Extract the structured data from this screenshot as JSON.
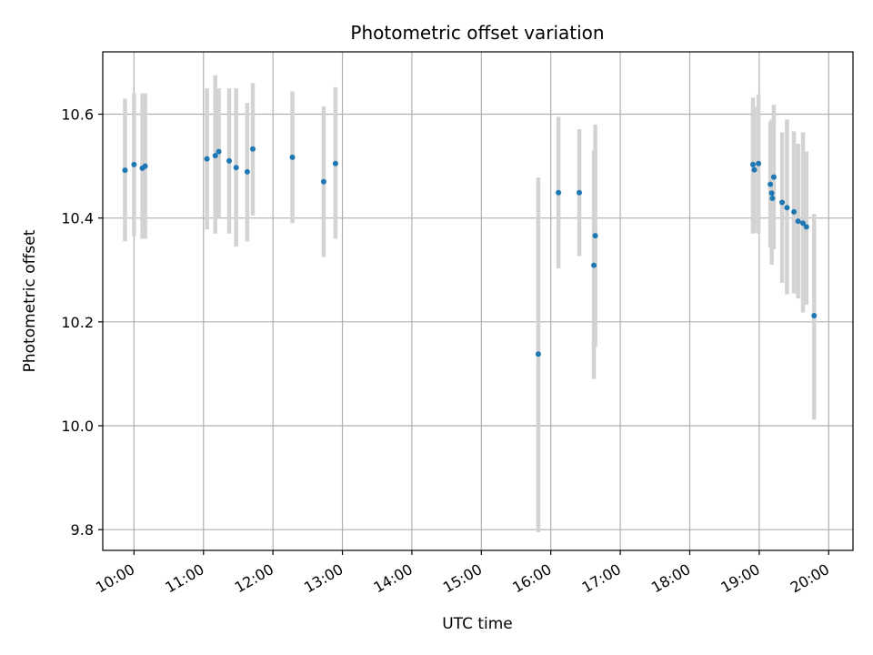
{
  "chart_data": {
    "type": "scatter",
    "title": "Photometric offset variation",
    "xlabel": "UTC time",
    "ylabel": "Photometric offset",
    "x_unit": "hour_of_day_utc",
    "xlim": [
      9.55,
      20.35
    ],
    "ylim": [
      9.76,
      10.72
    ],
    "grid": true,
    "x_ticks": [
      {
        "value": 10,
        "label": "10:00"
      },
      {
        "value": 11,
        "label": "11:00"
      },
      {
        "value": 12,
        "label": "12:00"
      },
      {
        "value": 13,
        "label": "13:00"
      },
      {
        "value": 14,
        "label": "14:00"
      },
      {
        "value": 15,
        "label": "15:00"
      },
      {
        "value": 16,
        "label": "16:00"
      },
      {
        "value": 17,
        "label": "17:00"
      },
      {
        "value": 18,
        "label": "18:00"
      },
      {
        "value": 19,
        "label": "19:00"
      },
      {
        "value": 20,
        "label": "20:00"
      }
    ],
    "y_ticks": [
      {
        "value": 9.8,
        "label": "9.8"
      },
      {
        "value": 10.0,
        "label": "10.0"
      },
      {
        "value": 10.2,
        "label": "10.2"
      },
      {
        "value": 10.4,
        "label": "10.4"
      },
      {
        "value": 10.6,
        "label": "10.6"
      }
    ],
    "point_color": "#1f77b4",
    "errorbar_color": "#d3d3d3",
    "points": [
      {
        "x": 9.87,
        "y": 10.492,
        "lo": 10.355,
        "hi": 10.63
      },
      {
        "x": 10.0,
        "y": 10.503,
        "lo": 10.365,
        "hi": 10.64
      },
      {
        "x": 10.12,
        "y": 10.496,
        "lo": 10.36,
        "hi": 10.64
      },
      {
        "x": 10.16,
        "y": 10.5,
        "lo": 10.36,
        "hi": 10.64
      },
      {
        "x": 11.05,
        "y": 10.514,
        "lo": 10.378,
        "hi": 10.65
      },
      {
        "x": 11.17,
        "y": 10.52,
        "lo": 10.37,
        "hi": 10.675
      },
      {
        "x": 11.22,
        "y": 10.528,
        "lo": 10.4,
        "hi": 10.65
      },
      {
        "x": 11.37,
        "y": 10.51,
        "lo": 10.37,
        "hi": 10.65
      },
      {
        "x": 11.47,
        "y": 10.497,
        "lo": 10.345,
        "hi": 10.65
      },
      {
        "x": 11.63,
        "y": 10.489,
        "lo": 10.355,
        "hi": 10.622
      },
      {
        "x": 11.71,
        "y": 10.533,
        "lo": 10.405,
        "hi": 10.66
      },
      {
        "x": 12.28,
        "y": 10.517,
        "lo": 10.39,
        "hi": 10.644
      },
      {
        "x": 12.73,
        "y": 10.47,
        "lo": 10.325,
        "hi": 10.615
      },
      {
        "x": 12.9,
        "y": 10.505,
        "lo": 10.36,
        "hi": 10.652
      },
      {
        "x": 15.82,
        "y": 10.138,
        "lo": 9.795,
        "hi": 10.478
      },
      {
        "x": 16.11,
        "y": 10.449,
        "lo": 10.303,
        "hi": 10.595
      },
      {
        "x": 16.41,
        "y": 10.449,
        "lo": 10.327,
        "hi": 10.571
      },
      {
        "x": 16.62,
        "y": 10.309,
        "lo": 10.09,
        "hi": 10.53
      },
      {
        "x": 16.64,
        "y": 10.366,
        "lo": 10.152,
        "hi": 10.58
      },
      {
        "x": 18.91,
        "y": 10.503,
        "lo": 10.37,
        "hi": 10.632
      },
      {
        "x": 18.93,
        "y": 10.493,
        "lo": 10.372,
        "hi": 10.614
      },
      {
        "x": 18.99,
        "y": 10.505,
        "lo": 10.37,
        "hi": 10.638
      },
      {
        "x": 19.16,
        "y": 10.465,
        "lo": 10.343,
        "hi": 10.586
      },
      {
        "x": 19.18,
        "y": 10.448,
        "lo": 10.31,
        "hi": 10.59
      },
      {
        "x": 19.19,
        "y": 10.438,
        "lo": 10.34,
        "hi": 10.54
      },
      {
        "x": 19.21,
        "y": 10.479,
        "lo": 10.34,
        "hi": 10.618
      },
      {
        "x": 19.33,
        "y": 10.43,
        "lo": 10.275,
        "hi": 10.565
      },
      {
        "x": 19.4,
        "y": 10.42,
        "lo": 10.253,
        "hi": 10.59
      },
      {
        "x": 19.5,
        "y": 10.412,
        "lo": 10.255,
        "hi": 10.567
      },
      {
        "x": 19.56,
        "y": 10.394,
        "lo": 10.245,
        "hi": 10.543
      },
      {
        "x": 19.63,
        "y": 10.39,
        "lo": 10.218,
        "hi": 10.565
      },
      {
        "x": 19.68,
        "y": 10.383,
        "lo": 10.233,
        "hi": 10.528
      },
      {
        "x": 19.79,
        "y": 10.212,
        "lo": 10.012,
        "hi": 10.408
      }
    ]
  }
}
